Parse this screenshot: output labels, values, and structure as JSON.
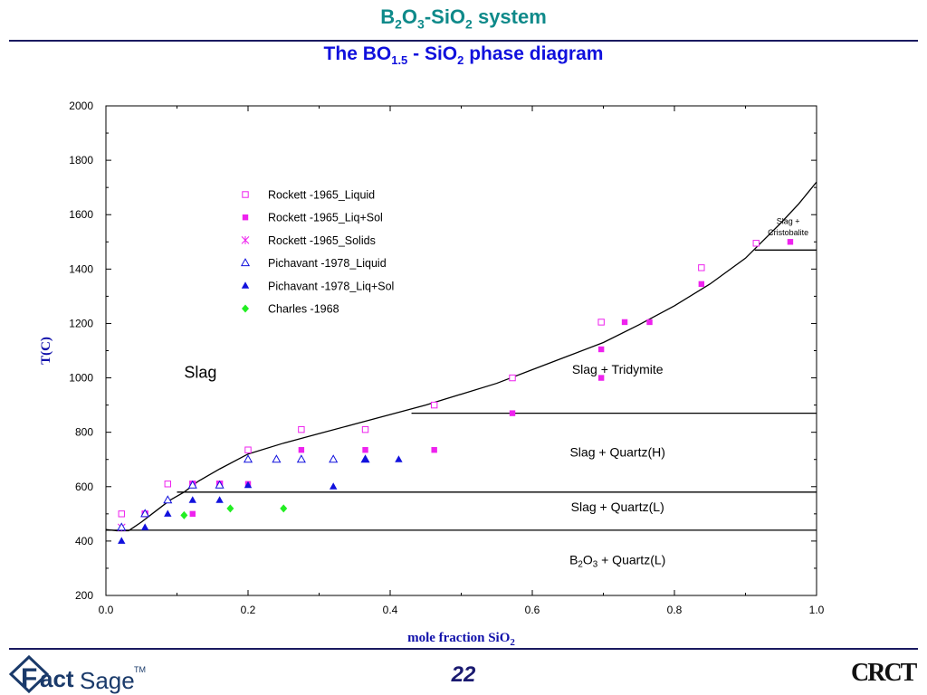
{
  "slide": {
    "title_parts": [
      "B",
      "2",
      "O",
      "3",
      "-SiO",
      "2",
      " system"
    ],
    "subtitle_parts": [
      "The BO",
      "1.5",
      " - SiO",
      "2",
      " phase diagram"
    ],
    "page_number": "22"
  },
  "colors": {
    "title": "#0f8a8a",
    "subtitle": "#1010dd",
    "rule": "#1a1a60",
    "axis_label": "#1010aa",
    "page_number": "#1a1a70",
    "rockett_liquid": "#ee22ee",
    "rockett_liqsol": "#ee22ee",
    "rockett_solids": "#ee22ee",
    "pichavant_liquid": "#1111dd",
    "pichavant_liqsol": "#1111dd",
    "charles": "#22ee22",
    "logo": "#1a3a6a"
  },
  "logos": {
    "factsage": {
      "letter": "F",
      "part1": "act",
      "part2": "Sage",
      "tm": "TM"
    },
    "crct": "CRCT"
  },
  "chart_data": {
    "type": "scatter",
    "xlabel": "mole fraction SiO",
    "xlabel_sub": "2",
    "ylabel": "T(C)",
    "xlim": [
      0.0,
      1.0
    ],
    "ylim": [
      200,
      2000
    ],
    "xticks": [
      0.0,
      0.2,
      0.4,
      0.6,
      0.8,
      1.0
    ],
    "xtick_labels": [
      "0.0",
      "0.2",
      "0.4",
      "0.6",
      "0.8",
      "1.0"
    ],
    "yticks": [
      200,
      400,
      600,
      800,
      1000,
      1200,
      1400,
      1600,
      1800,
      2000
    ],
    "ytick_labels": [
      "200",
      "400",
      "600",
      "800",
      "1000",
      "1200",
      "1400",
      "1600",
      "1800",
      "2000"
    ],
    "legend_position": "top-center",
    "series": [
      {
        "name": "Rockett -1965_Liquid",
        "marker": "open-square",
        "color_key": "rockett_liquid",
        "x": [
          0.022,
          0.055,
          0.087,
          0.122,
          0.16,
          0.2,
          0.275,
          0.365,
          0.462,
          0.572,
          0.697,
          0.838,
          0.915
        ],
        "y": [
          500,
          500,
          610,
          610,
          610,
          735,
          810,
          810,
          900,
          1000,
          1205,
          1405,
          1495
        ]
      },
      {
        "name": "Rockett -1965_Liq+Sol",
        "marker": "filled-square",
        "color_key": "rockett_liqsol",
        "x": [
          0.055,
          0.122,
          0.122,
          0.16,
          0.2,
          0.275,
          0.365,
          0.462,
          0.572,
          0.697,
          0.697,
          0.73,
          0.765,
          0.838,
          0.963
        ],
        "y": [
          500,
          500,
          610,
          610,
          610,
          735,
          735,
          735,
          870,
          1000,
          1105,
          1205,
          1205,
          1345,
          1500
        ]
      },
      {
        "name": "Rockett -1965_Solids",
        "marker": "asterisk",
        "color_key": "rockett_solids",
        "x": [
          0.022
        ],
        "y": [
          450
        ]
      },
      {
        "name": "Pichavant -1978_Liquid",
        "marker": "open-triangle",
        "color_key": "pichavant_liquid",
        "x": [
          0.022,
          0.055,
          0.087,
          0.122,
          0.16,
          0.2,
          0.24,
          0.275,
          0.32,
          0.365
        ],
        "y": [
          450,
          500,
          550,
          605,
          605,
          700,
          700,
          700,
          700,
          700
        ]
      },
      {
        "name": "Pichavant -1978_Liq+Sol",
        "marker": "filled-triangle",
        "color_key": "pichavant_liqsol",
        "x": [
          0.022,
          0.055,
          0.087,
          0.122,
          0.16,
          0.2,
          0.32,
          0.365,
          0.412
        ],
        "y": [
          400,
          450,
          500,
          550,
          550,
          605,
          600,
          700,
          700
        ]
      },
      {
        "name": "Charles -1968",
        "marker": "diamond",
        "color_key": "charles",
        "x": [
          0.11,
          0.175,
          0.25
        ],
        "y": [
          495,
          520,
          520
        ]
      }
    ],
    "lines": [
      {
        "kind": "liquidus",
        "x": [
          -0.01,
          0.015,
          0.032,
          0.05,
          0.07,
          0.09,
          0.11,
          0.13,
          0.16,
          0.2,
          0.25,
          0.3,
          0.35,
          0.4,
          0.45,
          0.5,
          0.55,
          0.6,
          0.65,
          0.7,
          0.75,
          0.8,
          0.85,
          0.9,
          0.95,
          0.975,
          1.0
        ],
        "y": [
          445,
          438,
          438,
          470,
          510,
          550,
          580,
          620,
          665,
          720,
          760,
          795,
          830,
          865,
          900,
          940,
          980,
          1030,
          1080,
          1130,
          1195,
          1265,
          1345,
          1440,
          1570,
          1640,
          1720
        ]
      },
      {
        "kind": "isotherm",
        "x": [
          -0.01,
          1.0
        ],
        "y": [
          440,
          440
        ]
      },
      {
        "kind": "isotherm",
        "x": [
          0.1,
          1.0
        ],
        "y": [
          580,
          580
        ]
      },
      {
        "kind": "isotherm",
        "x": [
          0.43,
          1.0
        ],
        "y": [
          870,
          870
        ]
      },
      {
        "kind": "isotherm",
        "x": [
          0.913,
          1.0
        ],
        "y": [
          1470,
          1470
        ]
      }
    ],
    "annotations": [
      {
        "text": "Slag",
        "x": 0.11,
        "y": 1000,
        "size": 18
      },
      {
        "text": "Slag + Tridymite",
        "x": 0.72,
        "y": 1015,
        "size": 14
      },
      {
        "text": "Slag + Quartz(H)",
        "x": 0.72,
        "y": 710,
        "size": 14
      },
      {
        "text": "Slag + Quartz(L)",
        "x": 0.72,
        "y": 510,
        "size": 14
      },
      {
        "parts": [
          "B",
          "2",
          "O",
          "3",
          " + Quartz(L)"
        ],
        "x": 0.72,
        "y": 315,
        "size": 14
      },
      {
        "text": "Slag +",
        "x": 0.96,
        "y": 1565,
        "size": 9
      },
      {
        "text": "Cristobalite",
        "x": 0.96,
        "y": 1525,
        "size": 9
      }
    ]
  }
}
